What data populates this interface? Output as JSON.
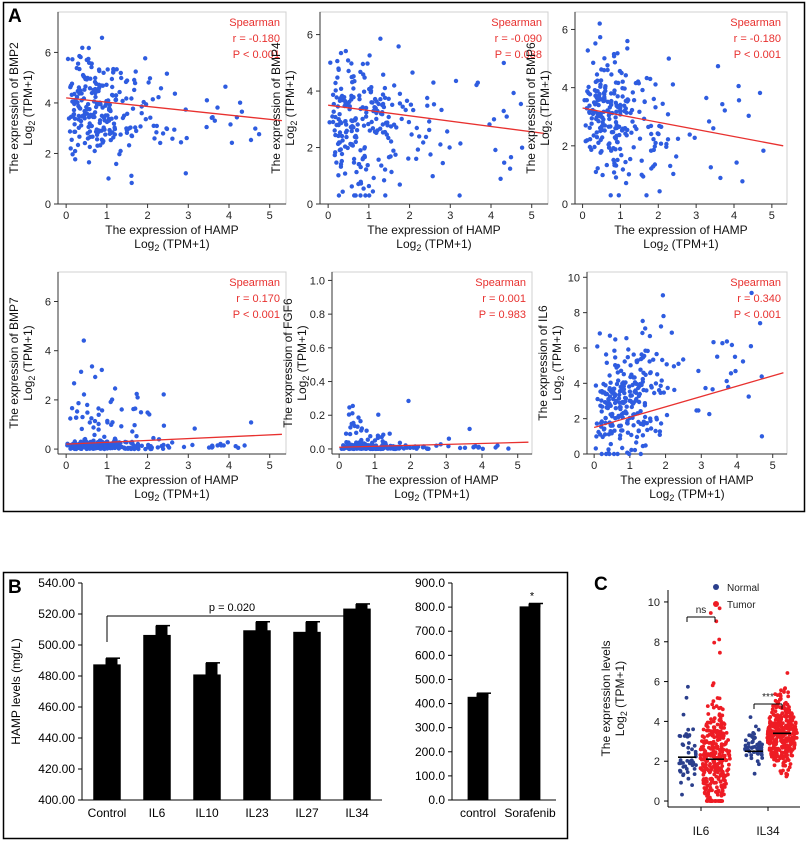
{
  "panel_labels": {
    "a": "A",
    "b": "B",
    "c": "C"
  },
  "colors": {
    "point": "#2e5ce0",
    "trend": "#e8312f",
    "bar": "#000000",
    "normal": "#2b3f8c",
    "tumor": "#ee1c24"
  },
  "chart_data": [
    {
      "id": "a1",
      "type": "scatter",
      "title": "",
      "ylabel_main": "The expression of BMP2",
      "ylabel_unit": "Log2 (TPM+1)",
      "ylabel_unit_base": "Log",
      "ylabel_unit_sub": "2",
      "ylabel_unit_rest": " (TPM+1)",
      "xlabel_main": "The expression of HAMP",
      "xlabel_unit_base": "Log",
      "xlabel_unit_sub": "2",
      "xlabel_unit_rest": " (TPM+1)",
      "stat_title": "Spearman",
      "r_text": "r = -0.180",
      "p_text": "P < 0.001",
      "xlim": [
        -0.2,
        5.4
      ],
      "ylim": [
        0,
        7.6
      ],
      "xticks": [
        0,
        1,
        2,
        3,
        4,
        5
      ],
      "yticks": [
        0,
        2,
        4,
        6
      ],
      "trend": [
        [
          0,
          4.2
        ],
        [
          5.3,
          3.3
        ]
      ],
      "points_n": 260,
      "points_seed": 11,
      "points_center_y": 3.9,
      "points_spread_y": 1.1,
      "points_min_y": 0.4,
      "points_max_y": 7.6
    },
    {
      "id": "a2",
      "type": "scatter",
      "ylabel_main": "The expression of BMP4",
      "ylabel_unit_base": "Log",
      "ylabel_unit_sub": "2",
      "ylabel_unit_rest": " (TPM+1)",
      "xlabel_main": "The expression of HAMP",
      "xlabel_unit_base": "Log",
      "xlabel_unit_sub": "2",
      "xlabel_unit_rest": " (TPM+1)",
      "stat_title": "Spearman",
      "r_text": "r = -0.090",
      "p_text": "P = 0.038",
      "xlim": [
        -0.2,
        5.4
      ],
      "ylim": [
        0,
        6.8
      ],
      "xticks": [
        0,
        1,
        2,
        3,
        4,
        5
      ],
      "yticks": [
        0,
        2,
        4,
        6
      ],
      "trend": [
        [
          0,
          3.5
        ],
        [
          5.3,
          2.5
        ]
      ],
      "points_n": 260,
      "points_seed": 23,
      "points_center_y": 3.2,
      "points_spread_y": 1.2,
      "points_min_y": 0.3,
      "points_max_y": 6.7
    },
    {
      "id": "a3",
      "type": "scatter",
      "ylabel_main": "The expression of BMP6",
      "ylabel_unit_base": "Log",
      "ylabel_unit_sub": "2",
      "ylabel_unit_rest": " (TPM+1)",
      "xlabel_main": "The expression of HAMP",
      "xlabel_unit_base": "Log",
      "xlabel_unit_sub": "2",
      "xlabel_unit_rest": " (TPM+1)",
      "stat_title": "Spearman",
      "r_text": "r = -0.180",
      "p_text": "P < 0.001",
      "xlim": [
        -0.2,
        5.4
      ],
      "ylim": [
        0,
        6.6
      ],
      "xticks": [
        0,
        1,
        2,
        3,
        4,
        5
      ],
      "yticks": [
        0,
        2,
        4,
        6
      ],
      "trend": [
        [
          0,
          3.3
        ],
        [
          5.3,
          2.0
        ]
      ],
      "points_n": 260,
      "points_seed": 37,
      "points_center_y": 3.1,
      "points_spread_y": 1.1,
      "points_min_y": 0.3,
      "points_max_y": 6.2
    },
    {
      "id": "a4",
      "type": "scatter",
      "ylabel_main": "The expression of BMP7",
      "ylabel_unit_base": "Log",
      "ylabel_unit_sub": "2",
      "ylabel_unit_rest": " (TPM+1)",
      "xlabel_main": "The expression of HAMP",
      "xlabel_unit_base": "Log",
      "xlabel_unit_sub": "2",
      "xlabel_unit_rest": " (TPM+1)",
      "stat_title": "Spearman",
      "r_text": "r = 0.170",
      "p_text": "P < 0.001",
      "xlim": [
        -0.2,
        5.4
      ],
      "ylim": [
        -0.2,
        7.2
      ],
      "xticks": [
        0,
        1,
        2,
        3,
        4,
        5
      ],
      "yticks": [
        0,
        2,
        4,
        6
      ],
      "trend": [
        [
          0,
          0.2
        ],
        [
          5.3,
          0.6
        ]
      ],
      "points_n": 260,
      "points_seed": 41,
      "points_center_y": 0.15,
      "points_spread_y": 0.7,
      "points_min_y": 0.0,
      "points_max_y": 7.1
    },
    {
      "id": "a5",
      "type": "scatter",
      "ylabel_main": "The expression of FGF6",
      "ylabel_unit_base": "Log",
      "ylabel_unit_sub": "2",
      "ylabel_unit_rest": " (TPM+1)",
      "xlabel_main": "The expression of HAMP",
      "xlabel_unit_base": "Log",
      "xlabel_unit_sub": "2",
      "xlabel_unit_rest": " (TPM+1)",
      "stat_title": "Spearman",
      "r_text": "r = 0.001",
      "p_text": "P = 0.983",
      "xlim": [
        -0.2,
        5.4
      ],
      "ylim": [
        -0.03,
        1.05
      ],
      "xticks": [
        0,
        1,
        2,
        3,
        4,
        5
      ],
      "yticks": [
        0.0,
        0.2,
        0.4,
        0.6,
        0.8,
        1.0
      ],
      "trend": [
        [
          0,
          0.01
        ],
        [
          5.3,
          0.04
        ]
      ],
      "points_n": 220,
      "points_seed": 53,
      "points_center_y": 0.0,
      "points_spread_y": 0.06,
      "points_min_y": 0.0,
      "points_max_y": 0.99
    },
    {
      "id": "a6",
      "type": "scatter",
      "ylabel_main": "The expression of IL6",
      "ylabel_unit_base": "Log",
      "ylabel_unit_sub": "2",
      "ylabel_unit_rest": " (TPM+1)",
      "xlabel_main": "The expression of HAMP",
      "xlabel_unit_base": "Log",
      "xlabel_unit_sub": "2",
      "xlabel_unit_rest": " (TPM+1)",
      "stat_title": "Spearman",
      "r_text": "r = 0.340",
      "p_text": "P < 0.001",
      "xlim": [
        -0.2,
        5.4
      ],
      "ylim": [
        0,
        10.3
      ],
      "xticks": [
        0,
        1,
        2,
        3,
        4,
        5
      ],
      "yticks": [
        0,
        2,
        4,
        6,
        8,
        10
      ],
      "trend": [
        [
          0,
          1.5
        ],
        [
          5.3,
          4.6
        ]
      ],
      "points_n": 280,
      "points_seed": 67,
      "points_center_y": 2.4,
      "points_spread_y": 1.6,
      "points_min_y": 0.0,
      "points_max_y": 10.1
    },
    {
      "id": "b1",
      "type": "bar",
      "ylabel": "HAMP levels (mg/L)",
      "categories": [
        "Control",
        "IL6",
        "IL10",
        "IL23",
        "IL27",
        "IL34"
      ],
      "values": [
        487.5,
        506.5,
        481.0,
        509.5,
        508.5,
        523.5
      ],
      "errors": [
        4.0,
        6.0,
        7.5,
        5.5,
        6.5,
        3.0
      ],
      "ylim": [
        400,
        540
      ],
      "yticks": [
        "400.00",
        "420.00",
        "440.00",
        "460.00",
        "480.00",
        "500.00",
        "520.00",
        "540.00"
      ],
      "annotation": "p = 0.020"
    },
    {
      "id": "b2",
      "type": "bar",
      "ylabel": "",
      "categories": [
        "control",
        "Sorafenib"
      ],
      "values": [
        428.0,
        803.0
      ],
      "errors": [
        15.0,
        12.0
      ],
      "ylim": [
        0,
        900
      ],
      "yticks": [
        "0.0",
        "100.0",
        "200.0",
        "300.0",
        "400.0",
        "500.0",
        "600.0",
        "700.0",
        "800.0",
        "900.0"
      ],
      "annotation": "*"
    },
    {
      "id": "c1",
      "type": "scatter",
      "ylabel_main": "The expression levels",
      "ylabel_unit_base": "Log",
      "ylabel_unit_sub": "2",
      "ylabel_unit_rest": " (TPM+1)",
      "categories": [
        "IL6",
        "IL34"
      ],
      "ylim": [
        -0.3,
        10.6
      ],
      "yticks": [
        0,
        2,
        4,
        6,
        8,
        10
      ],
      "legend": [
        {
          "name": "Normal"
        },
        {
          "name": "Tumor"
        }
      ],
      "groups": [
        {
          "category": "IL6",
          "series": "Normal",
          "median": 2.2,
          "n": 50,
          "seed": 71,
          "spread": 1.3,
          "max": 6.1
        },
        {
          "category": "IL6",
          "series": "Tumor",
          "median": 2.1,
          "n": 320,
          "seed": 83,
          "spread": 1.9,
          "max": 10.2
        },
        {
          "category": "IL34",
          "series": "Normal",
          "median": 2.5,
          "n": 50,
          "seed": 97,
          "spread": 0.8,
          "max": 4.9
        },
        {
          "category": "IL34",
          "series": "Tumor",
          "median": 3.4,
          "n": 320,
          "seed": 101,
          "spread": 1.2,
          "max": 6.6
        }
      ],
      "sig": [
        {
          "category": "IL6",
          "label": "ns"
        },
        {
          "category": "IL34",
          "label": "***"
        }
      ]
    }
  ]
}
